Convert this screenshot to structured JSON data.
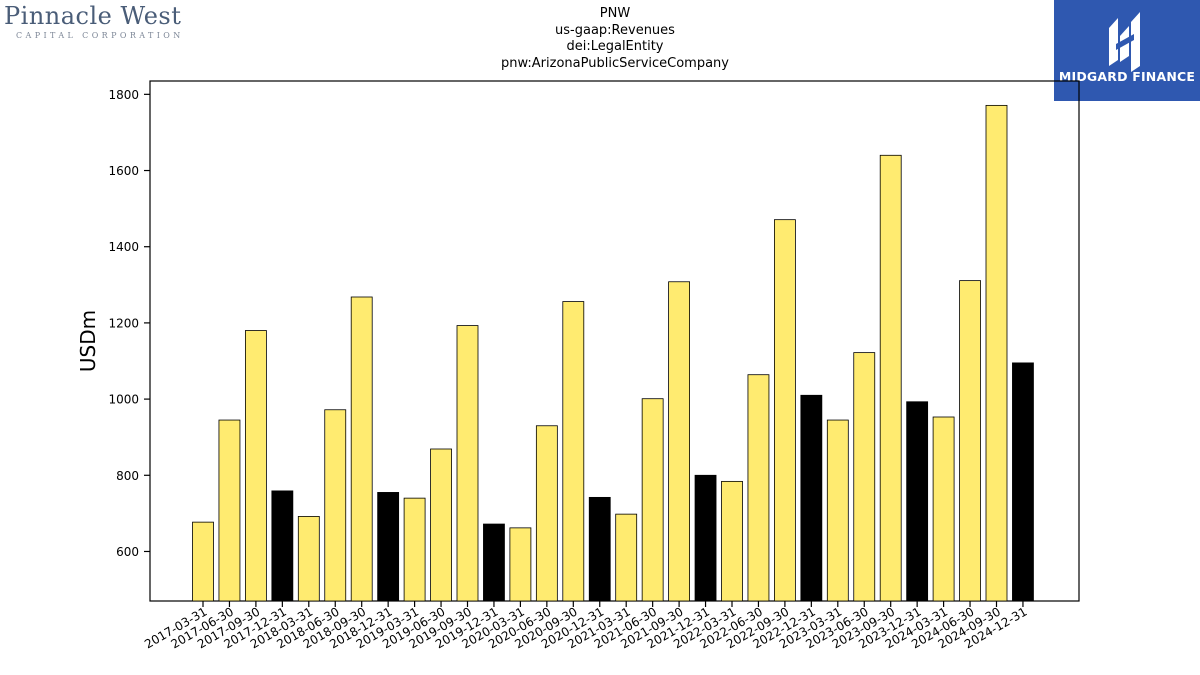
{
  "logo_left": {
    "name": "Pinnacle West",
    "tagline": "CAPITAL CORPORATION"
  },
  "brand": {
    "name": "MIDGARD FINANCE",
    "color": "#2f58b0"
  },
  "chart_data": {
    "type": "bar",
    "title": [
      "PNW",
      "us-gaap:Revenues",
      "dei:LegalEntity",
      "pnw:ArizonaPublicServiceCompany"
    ],
    "ylabel": "USDm",
    "xlabel": "",
    "ylim": [
      470,
      1835
    ],
    "yticks": [
      600,
      800,
      1000,
      1200,
      1400,
      1600,
      1800
    ],
    "grid": false,
    "legend": "none",
    "colors": {
      "quarter": "#ffeb70",
      "year_end": "#000000",
      "edge": "#000000"
    },
    "categories": [
      "2017-03-31",
      "2017-06-30",
      "2017-09-30",
      "2017-12-31",
      "2018-03-31",
      "2018-06-30",
      "2018-09-30",
      "2018-12-31",
      "2019-03-31",
      "2019-06-30",
      "2019-09-30",
      "2019-12-31",
      "2020-03-31",
      "2020-06-30",
      "2020-09-30",
      "2020-12-31",
      "2021-03-31",
      "2021-06-30",
      "2021-09-30",
      "2021-12-31",
      "2022-03-31",
      "2022-06-30",
      "2022-09-30",
      "2022-12-31",
      "2023-03-31",
      "2023-06-30",
      "2023-09-30",
      "2023-12-31",
      "2024-03-31",
      "2024-06-30",
      "2024-09-30",
      "2024-12-31"
    ],
    "values": [
      677,
      945,
      1180,
      759,
      692,
      972,
      1268,
      755,
      740,
      869,
      1193,
      672,
      662,
      930,
      1256,
      742,
      698,
      1001,
      1308,
      800,
      784,
      1064,
      1471,
      1010,
      945,
      1122,
      1640,
      993,
      953,
      1311,
      1771,
      1095
    ],
    "highlight": [
      "2017-12-31",
      "2018-12-31",
      "2019-12-31",
      "2020-12-31",
      "2021-12-31",
      "2022-12-31",
      "2023-12-31",
      "2024-12-31"
    ]
  }
}
